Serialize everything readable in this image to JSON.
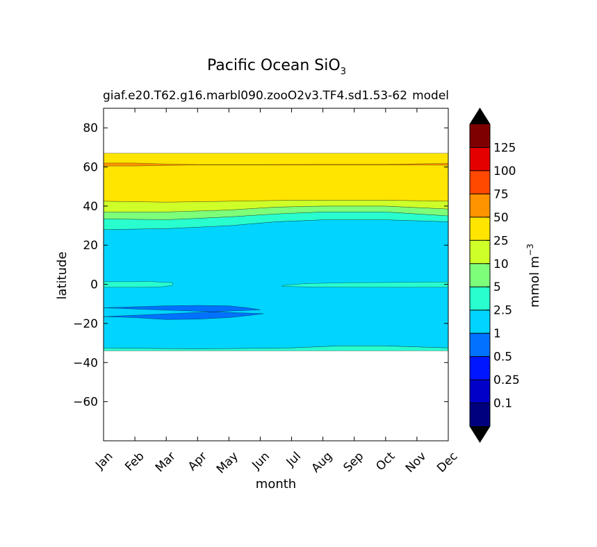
{
  "chart_data": {
    "type": "contourf",
    "title": "Pacific Ocean SiO",
    "title_subscript": "3",
    "subtitle_left": "giaf.e20.T62.g16.marbl090.zooO2v3.TF4.sd1.53-62",
    "subtitle_right": "model",
    "xlabel": "month",
    "ylabel": "latitude",
    "x_categories": [
      "Jan",
      "Feb",
      "Mar",
      "Apr",
      "May",
      "Jun",
      "Jul",
      "Aug",
      "Sep",
      "Oct",
      "Nov",
      "Dec"
    ],
    "xlim": [
      0,
      11
    ],
    "ylim": [
      -80,
      90
    ],
    "y_ticks": [
      {
        "value": 80,
        "label": "80"
      },
      {
        "value": 60,
        "label": "60"
      },
      {
        "value": 40,
        "label": "40"
      },
      {
        "value": 20,
        "label": "20"
      },
      {
        "value": 0,
        "label": "0"
      },
      {
        "value": -20,
        "label": "−20"
      },
      {
        "value": -40,
        "label": "−40"
      },
      {
        "value": -60,
        "label": "−60"
      }
    ],
    "data_lat_range": [
      -34,
      67
    ],
    "colorbar": {
      "label": "mmol m",
      "label_superscript": "−3",
      "extend": "both",
      "levels": [
        0,
        0.1,
        0.25,
        0.5,
        1,
        2.5,
        5,
        10,
        25,
        50,
        75,
        100,
        125,
        150
      ],
      "level_labels": [
        "0.1",
        "0.25",
        "0.5",
        "1",
        "2.5",
        "5",
        "10",
        "25",
        "50",
        "75",
        "100",
        "125"
      ],
      "under_color": "#000000",
      "over_color": "#000000",
      "colors": [
        "#00007f",
        "#0000c8",
        "#0016ff",
        "#0072ff",
        "#00d4ff",
        "#29ffce",
        "#7dff7a",
        "#ceff29",
        "#ffe500",
        "#ff9400",
        "#ff4800",
        "#e50000",
        "#7f0000"
      ]
    },
    "regions": [
      {
        "name": "band-2.5-to-5-south",
        "level_index": 5,
        "top": [
          [
            0,
            -32.5
          ],
          [
            3,
            -33
          ],
          [
            6,
            -32.5
          ],
          [
            7.5,
            -31.5
          ],
          [
            9,
            -31.5
          ],
          [
            11,
            -32.5
          ]
        ],
        "bottom": [
          [
            0,
            -34
          ],
          [
            11,
            -34
          ]
        ]
      },
      {
        "name": "band-1-to-2.5",
        "level_index": 4,
        "top": [
          [
            0,
            28
          ],
          [
            2,
            28.5
          ],
          [
            4,
            30
          ],
          [
            5.5,
            32
          ],
          [
            7,
            33
          ],
          [
            9,
            33
          ],
          [
            11,
            32
          ]
        ],
        "bottom": [
          [
            0,
            -32.5
          ],
          [
            3,
            -33
          ],
          [
            6,
            -32.5
          ],
          [
            7.5,
            -31.5
          ],
          [
            9,
            -31.5
          ],
          [
            11,
            -32.5
          ]
        ]
      },
      {
        "name": "band-2.5-to-5-north",
        "level_index": 5,
        "top": [
          [
            0,
            33.5
          ],
          [
            2,
            33
          ],
          [
            4,
            34.5
          ],
          [
            5.5,
            36
          ],
          [
            7,
            37
          ],
          [
            9,
            37
          ],
          [
            11,
            35
          ]
        ],
        "bottom": [
          [
            0,
            28
          ],
          [
            2,
            28.5
          ],
          [
            4,
            30
          ],
          [
            5.5,
            32
          ],
          [
            7,
            33
          ],
          [
            9,
            33
          ],
          [
            11,
            32
          ]
        ]
      },
      {
        "name": "band-5-to-10",
        "level_index": 6,
        "top": [
          [
            0,
            37
          ],
          [
            2,
            37
          ],
          [
            4,
            38
          ],
          [
            5.5,
            39.5
          ],
          [
            7,
            40
          ],
          [
            9,
            40
          ],
          [
            11,
            38.5
          ]
        ],
        "bottom": [
          [
            0,
            33.5
          ],
          [
            2,
            33
          ],
          [
            4,
            34.5
          ],
          [
            5.5,
            36
          ],
          [
            7,
            37
          ],
          [
            9,
            37
          ],
          [
            11,
            35
          ]
        ]
      },
      {
        "name": "band-10-to-25",
        "level_index": 7,
        "top": [
          [
            0,
            42.5
          ],
          [
            2,
            42
          ],
          [
            4,
            42.5
          ],
          [
            6,
            43
          ],
          [
            9,
            43
          ],
          [
            11,
            42.5
          ]
        ],
        "bottom": [
          [
            0,
            37
          ],
          [
            2,
            37
          ],
          [
            4,
            38
          ],
          [
            5.5,
            39.5
          ],
          [
            7,
            40
          ],
          [
            9,
            40
          ],
          [
            11,
            38.5
          ]
        ]
      },
      {
        "name": "band-25-to-50",
        "level_index": 8,
        "top": [
          [
            0,
            67
          ],
          [
            11,
            67
          ]
        ],
        "bottom": [
          [
            0,
            42.5
          ],
          [
            2,
            42
          ],
          [
            4,
            42.5
          ],
          [
            6,
            43
          ],
          [
            9,
            43
          ],
          [
            11,
            42.5
          ]
        ]
      },
      {
        "name": "band-50-to-75-north",
        "level_index": 9,
        "top": [
          [
            0,
            62
          ],
          [
            1,
            62
          ],
          [
            2,
            61.5
          ],
          [
            3,
            61.2
          ],
          [
            5,
            61.2
          ],
          [
            7,
            61.3
          ],
          [
            9,
            61.3
          ],
          [
            10,
            61.6
          ],
          [
            11,
            61.8
          ]
        ],
        "bottom": [
          [
            0,
            60.5
          ],
          [
            1,
            60.5
          ],
          [
            2,
            60.8
          ],
          [
            3,
            61
          ],
          [
            5,
            61
          ],
          [
            7,
            61
          ],
          [
            9,
            61
          ],
          [
            10,
            61
          ],
          [
            11,
            60.9
          ]
        ]
      },
      {
        "name": "equator-band-west",
        "level_index": 5,
        "top": [
          [
            0,
            1.3
          ],
          [
            1,
            1.3
          ],
          [
            1.5,
            1.5
          ],
          [
            1.8,
            1.1
          ],
          [
            2.2,
            0.8
          ]
        ],
        "bottom": [
          [
            0,
            -1.5
          ],
          [
            1,
            -1.5
          ],
          [
            1.8,
            -1.3
          ],
          [
            2.2,
            -0.5
          ]
        ]
      },
      {
        "name": "equator-band-east",
        "level_index": 5,
        "top": [
          [
            5.7,
            -0.6
          ],
          [
            6.3,
            0.2
          ],
          [
            6.7,
            0.5
          ],
          [
            8,
            0.8
          ],
          [
            9.5,
            1
          ],
          [
            11,
            1.2
          ]
        ],
        "bottom": [
          [
            5.7,
            -1
          ],
          [
            6.5,
            -1.3
          ],
          [
            8,
            -1.5
          ],
          [
            11,
            -1.5
          ]
        ]
      },
      {
        "name": "band-0.5-to-1-south",
        "level_index": 3,
        "top": [
          [
            0,
            -12
          ],
          [
            1,
            -11.5
          ],
          [
            2,
            -11
          ],
          [
            3,
            -10.8
          ],
          [
            4,
            -11
          ],
          [
            4.6,
            -12
          ],
          [
            5,
            -13
          ]
        ],
        "bottom": [
          [
            5.1,
            -15
          ],
          [
            4.6,
            -16
          ],
          [
            4,
            -17
          ],
          [
            3,
            -17.8
          ],
          [
            2,
            -18
          ],
          [
            1,
            -17
          ],
          [
            0,
            -16.5
          ]
        ]
      }
    ]
  }
}
